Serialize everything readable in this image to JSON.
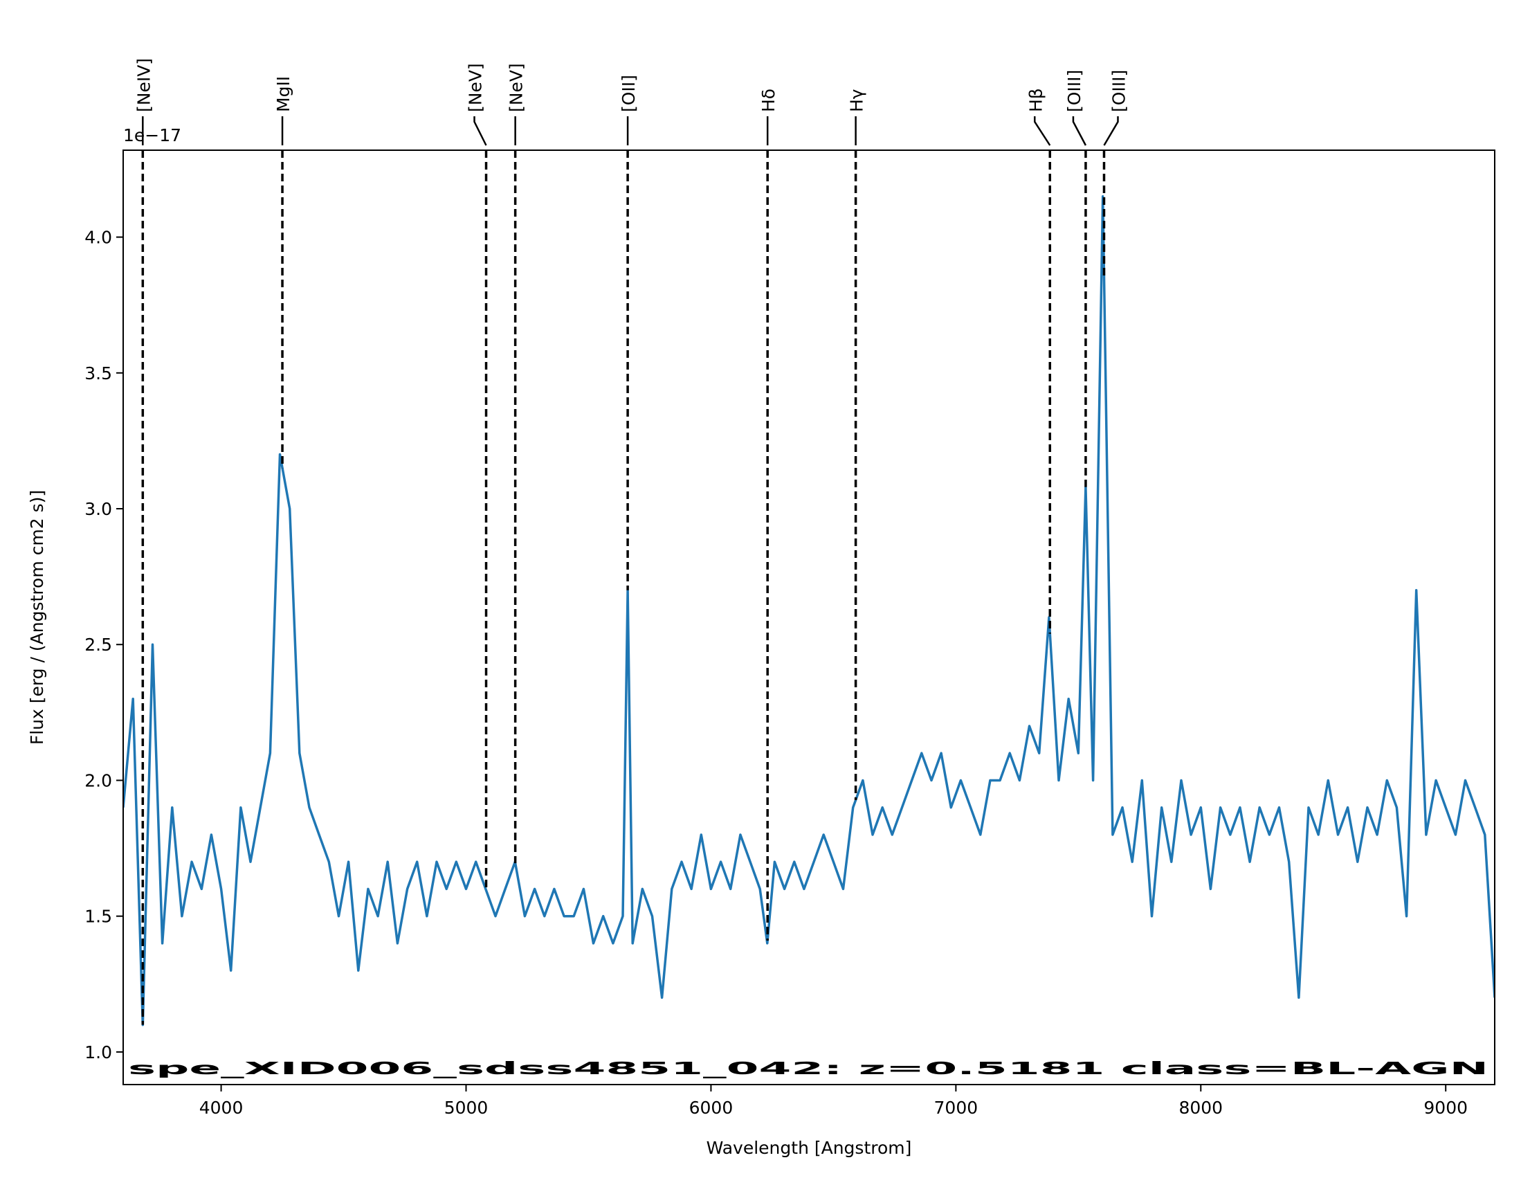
{
  "chart_data": {
    "type": "line",
    "title": "spe_XID006_sdss4851_042: z=0.5181 class=BL-AGN",
    "title_color": "#0000ff",
    "x_label": "Wavelength [Angstrom]",
    "y_label": "Flux [erg / (Angstrom cm2 s)]",
    "y_offset_label": "1e−17",
    "color": "#1f77b4",
    "xlim": [
      3600,
      9200
    ],
    "ylim": [
      0.88,
      4.32
    ],
    "xticks": [
      4000,
      5000,
      6000,
      7000,
      8000,
      9000
    ],
    "yticks": [
      {
        "value": 1.0,
        "label": "1.0"
      },
      1.5,
      {
        "value": 2.0,
        "label": "2.0"
      },
      2.5,
      {
        "value": 3.0,
        "label": "3.0"
      },
      3.5,
      {
        "value": 4.0,
        "label": "4.0"
      }
    ],
    "x": [
      3600,
      3640,
      3680,
      3720,
      3760,
      3800,
      3840,
      3880,
      3920,
      3960,
      4000,
      4040,
      4080,
      4120,
      4160,
      4200,
      4240,
      4280,
      4320,
      4360,
      4400,
      4440,
      4480,
      4520,
      4560,
      4600,
      4640,
      4680,
      4720,
      4760,
      4800,
      4840,
      4880,
      4920,
      4960,
      5000,
      5040,
      5080,
      5120,
      5160,
      5200,
      5240,
      5280,
      5320,
      5360,
      5400,
      5440,
      5480,
      5520,
      5560,
      5600,
      5640,
      5660,
      5680,
      5720,
      5760,
      5800,
      5840,
      5880,
      5920,
      5960,
      6000,
      6040,
      6080,
      6120,
      6160,
      6200,
      6230,
      6260,
      6300,
      6340,
      6380,
      6420,
      6460,
      6500,
      6540,
      6580,
      6620,
      6660,
      6700,
      6740,
      6780,
      6820,
      6860,
      6900,
      6940,
      6980,
      7020,
      7060,
      7100,
      7140,
      7180,
      7220,
      7260,
      7300,
      7340,
      7380,
      7420,
      7460,
      7500,
      7530,
      7560,
      7600,
      7640,
      7680,
      7720,
      7760,
      7800,
      7840,
      7880,
      7920,
      7960,
      8000,
      8040,
      8080,
      8120,
      8160,
      8200,
      8240,
      8280,
      8320,
      8360,
      8400,
      8440,
      8480,
      8520,
      8560,
      8600,
      8640,
      8680,
      8720,
      8760,
      8800,
      8840,
      8880,
      8920,
      8960,
      9000,
      9040,
      9080,
      9120,
      9160,
      9200
    ],
    "values": [
      1.9,
      2.3,
      1.1,
      2.5,
      1.4,
      1.9,
      1.5,
      1.7,
      1.6,
      1.8,
      1.6,
      1.3,
      1.9,
      1.7,
      1.9,
      2.1,
      3.2,
      3.0,
      2.1,
      1.9,
      1.8,
      1.7,
      1.5,
      1.7,
      1.3,
      1.6,
      1.5,
      1.7,
      1.4,
      1.6,
      1.7,
      1.5,
      1.7,
      1.6,
      1.7,
      1.6,
      1.7,
      1.6,
      1.5,
      1.6,
      1.7,
      1.5,
      1.6,
      1.5,
      1.6,
      1.5,
      1.5,
      1.6,
      1.4,
      1.5,
      1.4,
      1.5,
      2.7,
      1.4,
      1.6,
      1.5,
      1.2,
      1.6,
      1.7,
      1.6,
      1.8,
      1.6,
      1.7,
      1.6,
      1.8,
      1.7,
      1.6,
      1.4,
      1.7,
      1.6,
      1.7,
      1.6,
      1.7,
      1.8,
      1.7,
      1.6,
      1.9,
      2.0,
      1.8,
      1.9,
      1.8,
      1.9,
      2.0,
      2.1,
      2.0,
      2.1,
      1.9,
      2.0,
      1.9,
      1.8,
      2.0,
      2.0,
      2.1,
      2.0,
      2.2,
      2.1,
      2.6,
      2.0,
      2.3,
      2.1,
      3.08,
      2.0,
      4.15,
      1.8,
      1.9,
      1.7,
      2.0,
      1.5,
      1.9,
      1.7,
      2.0,
      1.8,
      1.9,
      1.6,
      1.9,
      1.8,
      1.9,
      1.7,
      1.9,
      1.8,
      1.9,
      1.7,
      1.2,
      1.9,
      1.8,
      2.0,
      1.8,
      1.9,
      1.7,
      1.9,
      1.8,
      2.0,
      1.9,
      1.5,
      2.7,
      1.8,
      2.0,
      1.9,
      1.8,
      2.0,
      1.9,
      1.8,
      1.2
    ],
    "lines": [
      {
        "label": "[NeIV]",
        "x": 3680
      },
      {
        "label": "MgII",
        "x": 4250
      },
      {
        "label": "[NeV]",
        "x": 5082
      },
      {
        "label": "[NeV]",
        "x": 5201
      },
      {
        "label": "[OII]",
        "x": 5660
      },
      {
        "label": "Hδ",
        "x": 6231
      },
      {
        "label": "Hγ",
        "x": 6591
      },
      {
        "label": "Hβ",
        "x": 7384
      },
      {
        "label": "[OIII]",
        "x": 7530
      },
      {
        "label": "[OIII]",
        "x": 7605
      }
    ]
  }
}
